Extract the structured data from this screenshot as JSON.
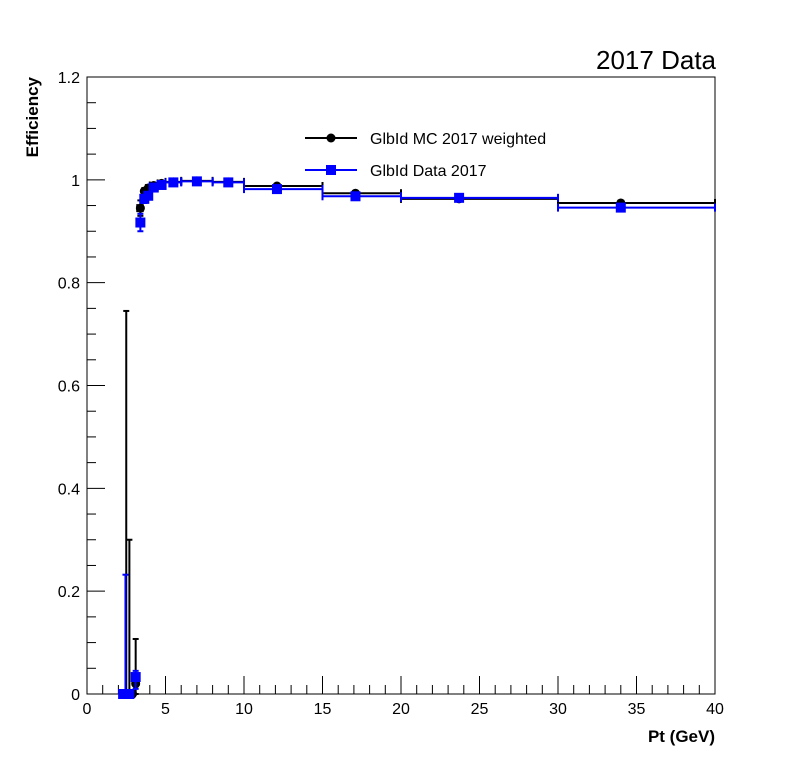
{
  "chart_data": {
    "type": "scatter",
    "title": "2017 Data",
    "xlabel": "Pt (GeV)",
    "ylabel": "Efficiency",
    "xlim": [
      0,
      40
    ],
    "ylim": [
      0,
      1.2
    ],
    "x_ticks": [
      "0",
      "5",
      "10",
      "15",
      "20",
      "25",
      "30",
      "35",
      "40"
    ],
    "y_ticks": [
      "0",
      "0.2",
      "0.4",
      "0.6",
      "0.8",
      "1",
      "1.2"
    ],
    "grid": false,
    "legend_position": "top-center",
    "series": [
      {
        "name": "GlbId MC 2017 weighted",
        "color": "#000000",
        "marker": "circle",
        "points": [
          {
            "x": 2.4,
            "xlo": 2.2,
            "xhi": 2.6,
            "y": 0.0,
            "ylo": 0.0,
            "yhi": 0.0
          },
          {
            "x": 2.5,
            "xlo": 2.4,
            "xhi": 2.6,
            "y": 0.0,
            "ylo": 0.0,
            "yhi": 0.745
          },
          {
            "x": 2.7,
            "xlo": 2.6,
            "xhi": 2.8,
            "y": 0.0,
            "ylo": 0.0,
            "yhi": 0.3
          },
          {
            "x": 2.9,
            "xlo": 2.8,
            "xhi": 3.0,
            "y": 0.0,
            "ylo": 0.0,
            "yhi": 0.0
          },
          {
            "x": 3.1,
            "xlo": 3.0,
            "xhi": 3.2,
            "y": 0.02,
            "ylo": 0.0,
            "yhi": 0.107
          },
          {
            "x": 3.4,
            "xlo": 3.2,
            "xhi": 3.55,
            "y": 0.945,
            "ylo": 0.93,
            "yhi": 0.96
          },
          {
            "x": 3.65,
            "xlo": 3.55,
            "xhi": 3.75,
            "y": 0.978,
            "ylo": 0.972,
            "yhi": 0.984
          },
          {
            "x": 3.9,
            "xlo": 3.75,
            "xhi": 4.0,
            "y": 0.984,
            "ylo": 0.979,
            "yhi": 0.989
          },
          {
            "x": 4.25,
            "xlo": 4.0,
            "xhi": 4.5,
            "y": 0.989,
            "ylo": 0.985,
            "yhi": 0.993
          },
          {
            "x": 4.75,
            "xlo": 4.5,
            "xhi": 5.0,
            "y": 0.993,
            "ylo": 0.99,
            "yhi": 0.996
          },
          {
            "x": 5.5,
            "xlo": 5.0,
            "xhi": 6.0,
            "y": 0.996,
            "ylo": 0.994,
            "yhi": 0.998
          },
          {
            "x": 7.0,
            "xlo": 6.0,
            "xhi": 8.0,
            "y": 0.998,
            "ylo": 0.996,
            "yhi": 1.0
          },
          {
            "x": 9.0,
            "xlo": 8.0,
            "xhi": 10.0,
            "y": 0.996,
            "ylo": 0.994,
            "yhi": 0.998
          },
          {
            "x": 12.1,
            "xlo": 10.0,
            "xhi": 15.0,
            "y": 0.988,
            "ylo": 0.985,
            "yhi": 0.991
          },
          {
            "x": 17.1,
            "xlo": 15.0,
            "xhi": 20.0,
            "y": 0.974,
            "ylo": 0.971,
            "yhi": 0.977
          },
          {
            "x": 23.7,
            "xlo": 20.0,
            "xhi": 30.0,
            "y": 0.963,
            "ylo": 0.96,
            "yhi": 0.966
          },
          {
            "x": 34.0,
            "xlo": 30.0,
            "xhi": 40.0,
            "y": 0.955,
            "ylo": 0.951,
            "yhi": 0.959
          }
        ]
      },
      {
        "name": "GlbId Data 2017",
        "color": "#0000ff",
        "marker": "square",
        "points": [
          {
            "x": 2.3,
            "xlo": 2.1,
            "xhi": 2.45,
            "y": 0.0,
            "ylo": 0.0,
            "yhi": 0.0
          },
          {
            "x": 2.45,
            "xlo": 2.3,
            "xhi": 2.55,
            "y": 0.0,
            "ylo": 0.0,
            "yhi": 0.232
          },
          {
            "x": 2.7,
            "xlo": 2.6,
            "xhi": 2.8,
            "y": 0.0,
            "ylo": 0.0,
            "yhi": 0.0
          },
          {
            "x": 3.1,
            "xlo": 3.0,
            "xhi": 3.2,
            "y": 0.033,
            "ylo": 0.01,
            "yhi": 0.045
          },
          {
            "x": 3.4,
            "xlo": 3.25,
            "xhi": 3.55,
            "y": 0.917,
            "ylo": 0.9,
            "yhi": 0.934
          },
          {
            "x": 3.65,
            "xlo": 3.55,
            "xhi": 3.75,
            "y": 0.963,
            "ylo": 0.955,
            "yhi": 0.971
          },
          {
            "x": 3.9,
            "xlo": 3.75,
            "xhi": 4.0,
            "y": 0.969,
            "ylo": 0.962,
            "yhi": 0.976
          },
          {
            "x": 4.25,
            "xlo": 4.0,
            "xhi": 4.5,
            "y": 0.985,
            "ylo": 0.98,
            "yhi": 0.99
          },
          {
            "x": 4.75,
            "xlo": 4.5,
            "xhi": 5.0,
            "y": 0.99,
            "ylo": 0.986,
            "yhi": 0.994
          },
          {
            "x": 5.5,
            "xlo": 5.0,
            "xhi": 6.0,
            "y": 0.995,
            "ylo": 0.992,
            "yhi": 0.998
          },
          {
            "x": 7.0,
            "xlo": 6.0,
            "xhi": 8.0,
            "y": 0.997,
            "ylo": 0.995,
            "yhi": 0.999
          },
          {
            "x": 9.0,
            "xlo": 8.0,
            "xhi": 10.0,
            "y": 0.995,
            "ylo": 0.993,
            "yhi": 0.997
          },
          {
            "x": 12.1,
            "xlo": 10.0,
            "xhi": 15.0,
            "y": 0.982,
            "ylo": 0.979,
            "yhi": 0.985
          },
          {
            "x": 17.1,
            "xlo": 15.0,
            "xhi": 20.0,
            "y": 0.968,
            "ylo": 0.965,
            "yhi": 0.971
          },
          {
            "x": 23.7,
            "xlo": 20.0,
            "xhi": 30.0,
            "y": 0.965,
            "ylo": 0.962,
            "yhi": 0.968
          },
          {
            "x": 34.0,
            "xlo": 30.0,
            "xhi": 40.0,
            "y": 0.946,
            "ylo": 0.942,
            "yhi": 0.95
          }
        ]
      }
    ]
  }
}
